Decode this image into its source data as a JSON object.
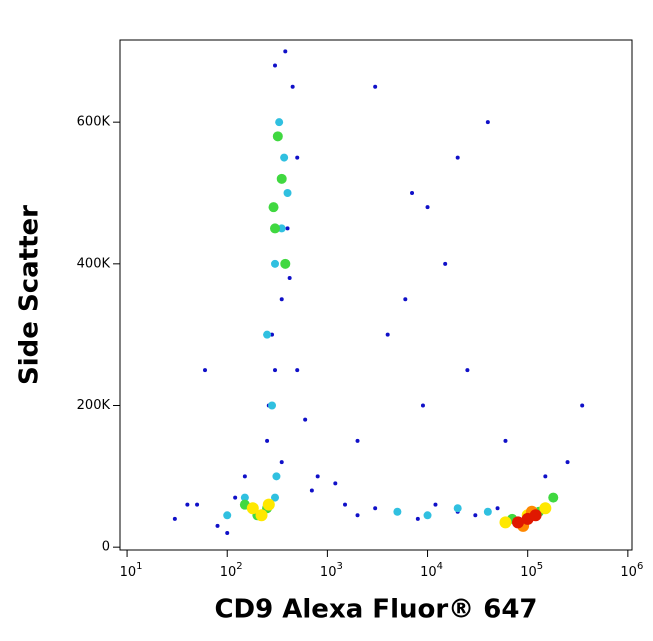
{
  "chart_data": {
    "type": "scatter",
    "x_label": "CD9 Alexa Fluor® 647",
    "y_label": "Side Scatter",
    "x_log": true,
    "xlim": [
      8.5,
      1100000
    ],
    "xticks": [
      {
        "value": 10,
        "label": "10",
        "sup": "1"
      },
      {
        "value": 100,
        "label": "10",
        "sup": "2"
      },
      {
        "value": 1000,
        "label": "10",
        "sup": "3"
      },
      {
        "value": 10000,
        "label": "10",
        "sup": "4"
      },
      {
        "value": 100000,
        "label": "10",
        "sup": "5"
      },
      {
        "value": 1000000,
        "label": "10",
        "sup": "6"
      }
    ],
    "ylim": [
      -4000,
      716000
    ],
    "yticks": [
      0,
      {
        "value": 200000,
        "label": "200K"
      },
      {
        "value": 400000,
        "label": "400K"
      },
      {
        "value": 600000,
        "label": "600K"
      }
    ],
    "series": [
      {
        "color": "#1010c8",
        "marker_size": 2,
        "x": [
          30,
          50,
          80,
          120,
          150,
          250,
          300,
          350,
          400,
          500,
          450,
          380,
          320,
          280,
          260,
          350,
          420,
          300,
          500,
          600,
          800,
          1500,
          2000,
          3000,
          5000,
          8000,
          12000,
          20000,
          30000,
          50000,
          4000,
          7000,
          15000,
          25000,
          40000,
          60000,
          9000,
          3000,
          6000,
          20000,
          150000,
          250000,
          350000,
          2000,
          10000,
          1200,
          700,
          100,
          60,
          40
        ],
        "values": [
          40000,
          60000,
          30000,
          70000,
          100000,
          150000,
          250000,
          350000,
          450000,
          550000,
          650000,
          700000,
          600000,
          300000,
          200000,
          120000,
          380000,
          680000,
          250000,
          180000,
          100000,
          60000,
          45000,
          55000,
          50000,
          40000,
          60000,
          50000,
          45000,
          55000,
          300000,
          500000,
          400000,
          250000,
          600000,
          150000,
          200000,
          650000,
          350000,
          550000,
          100000,
          120000,
          200000,
          150000,
          480000,
          90000,
          80000,
          20000,
          250000,
          60000
        ]
      },
      {
        "color": "#30c0e0",
        "marker_size": 4,
        "x": [
          250,
          300,
          350,
          400,
          330,
          280,
          370,
          310,
          5000,
          10000,
          20000,
          40000,
          300,
          150,
          100
        ],
        "values": [
          300000,
          400000,
          450000,
          500000,
          600000,
          200000,
          550000,
          100000,
          50000,
          45000,
          55000,
          50000,
          70000,
          70000,
          45000
        ]
      },
      {
        "color": "#40d840",
        "marker_size": 5,
        "x": [
          300,
          350,
          320,
          380,
          290,
          150,
          200,
          250,
          70000,
          130000,
          180000
        ],
        "values": [
          450000,
          520000,
          580000,
          400000,
          480000,
          60000,
          45000,
          55000,
          40000,
          50000,
          70000
        ]
      },
      {
        "color": "#ffe800",
        "marker_size": 6,
        "x": [
          180,
          220,
          260,
          60000,
          100000,
          150000
        ],
        "values": [
          55000,
          45000,
          60000,
          35000,
          45000,
          55000
        ]
      },
      {
        "color": "#ff8800",
        "marker_size": 6,
        "x": [
          90000,
          110000
        ],
        "values": [
          30000,
          50000
        ]
      },
      {
        "color": "#e01800",
        "marker_size": 6,
        "x": [
          80000,
          100000,
          120000
        ],
        "values": [
          35000,
          40000,
          45000
        ]
      }
    ]
  }
}
